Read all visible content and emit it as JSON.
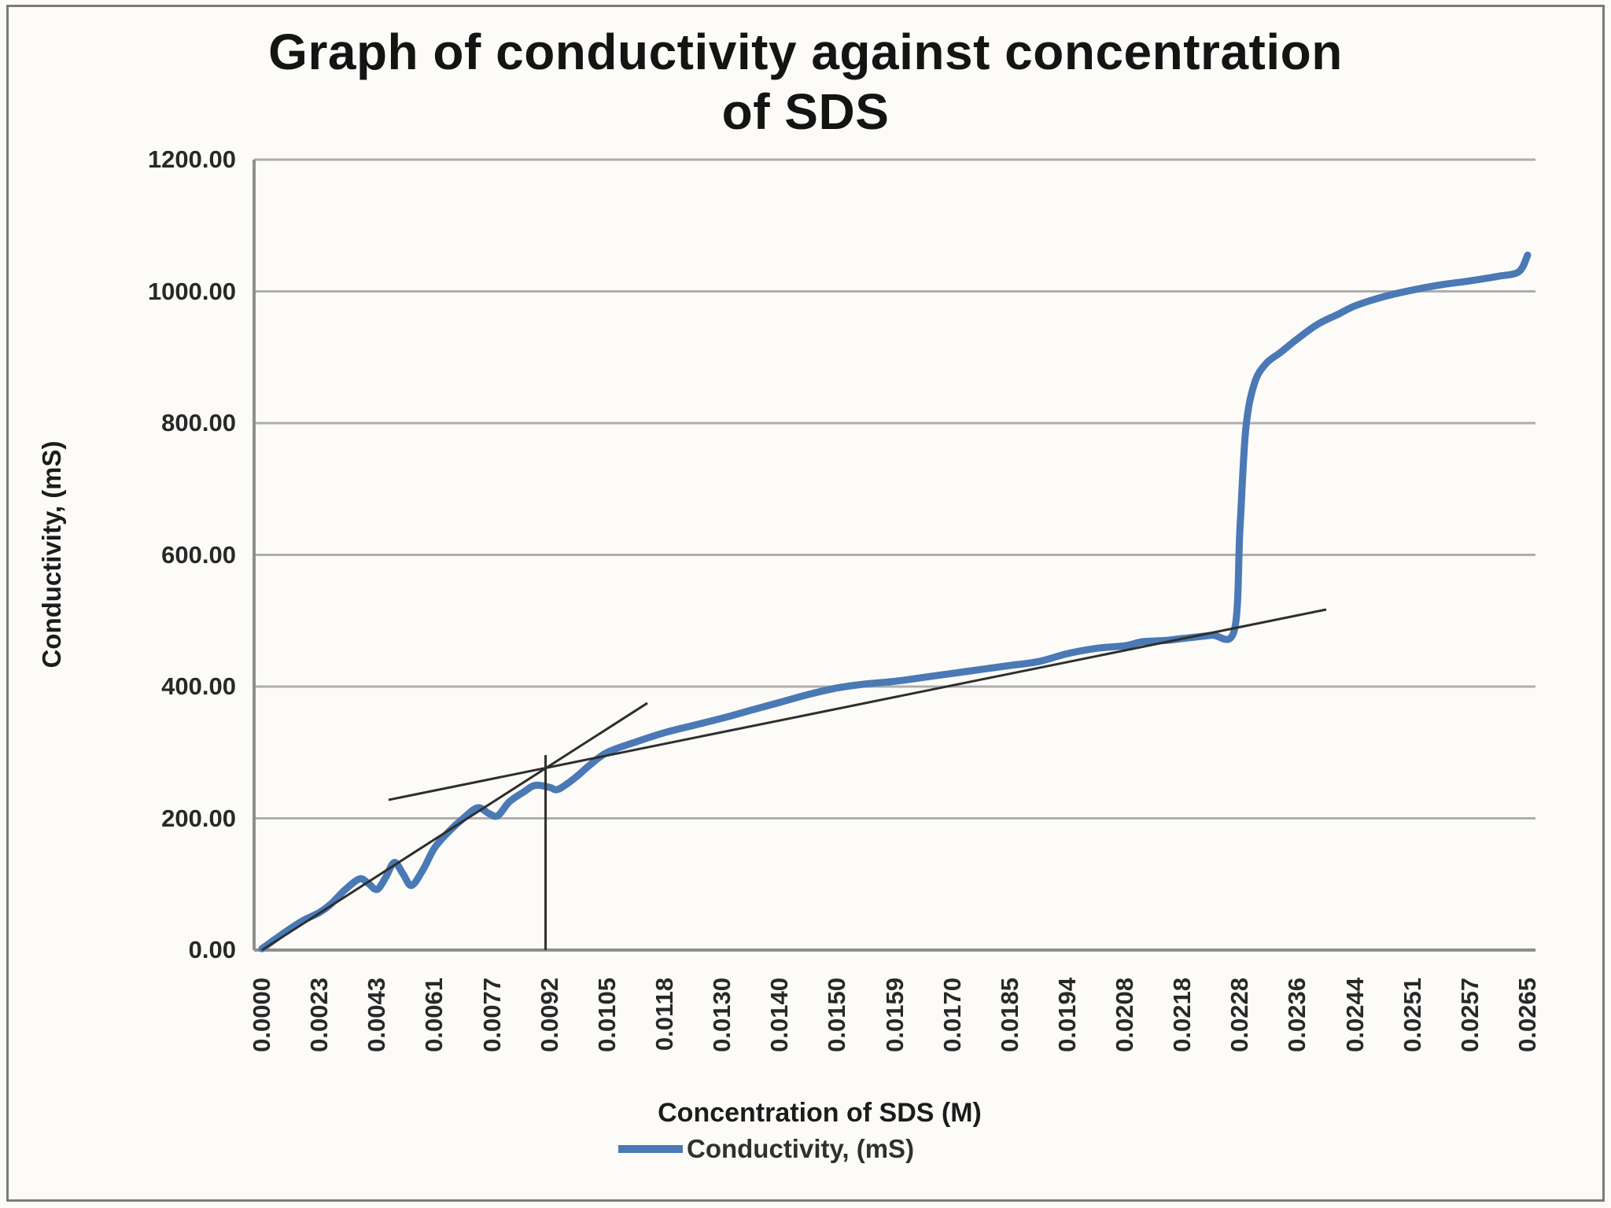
{
  "title": {
    "line1": "Graph of conductivity against concentration",
    "line2": "of SDS"
  },
  "y_axis": {
    "title": "Conductivity, (mS)",
    "tick_labels": [
      "0.00",
      "200.00",
      "400.00",
      "600.00",
      "800.00",
      "1000.00",
      "1200.00"
    ],
    "min": 0,
    "max": 1200,
    "step": 200
  },
  "x_axis": {
    "title": "Concentration of SDS (M)"
  },
  "legend": {
    "label": "Conductivity, (mS)",
    "swatch_color": "#4A79B5"
  },
  "colors": {
    "series_blue": "#4A79B5",
    "annotation_line": "#2e2e2e",
    "gridline": "#aeaeae",
    "axis_line": "#8f8f8f",
    "tick_text": "#282828",
    "background": "#fcfbf8",
    "border": "#7b7b7b"
  },
  "chart_data": {
    "type": "line",
    "title": "Graph of conductivity against concentration of SDS",
    "xlabel": "Concentration of SDS (M)",
    "ylabel": "Conductivity, (mS)",
    "ylim": [
      0,
      1200
    ],
    "grid": "horizontal-only",
    "legend_position": "bottom-center",
    "categories": [
      "0.0000",
      "0.0023",
      "0.0043",
      "0.0061",
      "0.0077",
      "0.0092",
      "0.0105",
      "0.0118",
      "0.0130",
      "0.0140",
      "0.0150",
      "0.0159",
      "0.0170",
      "0.0185",
      "0.0194",
      "0.0208",
      "0.0218",
      "0.0228",
      "0.0236",
      "0.0244",
      "0.0251",
      "0.0257",
      "0.0265"
    ],
    "series": [
      {
        "name": "Conductivity, (mS)",
        "color": "#4A79B5",
        "values": [
          2,
          57,
          92,
          155,
          204,
          246,
          300,
          330,
          352,
          376,
          398,
          408,
          420,
          432,
          450,
          462,
          473,
          483,
          928,
          978,
          1002,
          1016,
          1055
        ]
      }
    ],
    "smoothed_curve_samples_index_value": [
      [
        0,
        2
      ],
      [
        0.35,
        24
      ],
      [
        0.7,
        44
      ],
      [
        1,
        57
      ],
      [
        1.2,
        70
      ],
      [
        1.45,
        92
      ],
      [
        1.7,
        108
      ],
      [
        1.85,
        101
      ],
      [
        2,
        92
      ],
      [
        2.15,
        110
      ],
      [
        2.3,
        133
      ],
      [
        2.45,
        116
      ],
      [
        2.6,
        98
      ],
      [
        2.8,
        122
      ],
      [
        3,
        155
      ],
      [
        3.25,
        180
      ],
      [
        3.5,
        200
      ],
      [
        3.75,
        216
      ],
      [
        3.95,
        207
      ],
      [
        4.1,
        204
      ],
      [
        4.3,
        225
      ],
      [
        4.55,
        240
      ],
      [
        4.75,
        250
      ],
      [
        5,
        247
      ],
      [
        5.15,
        244
      ],
      [
        5.45,
        262
      ],
      [
        5.7,
        281
      ],
      [
        6,
        300
      ],
      [
        6.5,
        316
      ],
      [
        7,
        330
      ],
      [
        7.5,
        341
      ],
      [
        8,
        352
      ],
      [
        8.5,
        364
      ],
      [
        9,
        376
      ],
      [
        9.5,
        388
      ],
      [
        10,
        398
      ],
      [
        10.5,
        404
      ],
      [
        11,
        408
      ],
      [
        11.5,
        414
      ],
      [
        12,
        420
      ],
      [
        12.5,
        426
      ],
      [
        13,
        432
      ],
      [
        13.5,
        438
      ],
      [
        14,
        450
      ],
      [
        14.5,
        458
      ],
      [
        15,
        462
      ],
      [
        15.3,
        468
      ],
      [
        15.7,
        470
      ],
      [
        16,
        473
      ],
      [
        16.5,
        478
      ],
      [
        16.9,
        485
      ],
      [
        17.0,
        640
      ],
      [
        17.1,
        790
      ],
      [
        17.25,
        860
      ],
      [
        17.45,
        890
      ],
      [
        17.7,
        907
      ],
      [
        18,
        928
      ],
      [
        18.35,
        950
      ],
      [
        18.7,
        965
      ],
      [
        19,
        978
      ],
      [
        19.5,
        992
      ],
      [
        20,
        1002
      ],
      [
        20.5,
        1010
      ],
      [
        21,
        1016
      ],
      [
        21.5,
        1023
      ],
      [
        21.85,
        1030
      ],
      [
        22,
        1055
      ]
    ],
    "annotations": {
      "trendline_steep_index_value": [
        [
          0,
          0
        ],
        [
          6.7,
          375
        ]
      ],
      "trendline_shallow_index_value": [
        [
          2.2,
          228
        ],
        [
          18.5,
          517
        ]
      ],
      "vertical_line": {
        "index": 4.93,
        "value_top": 296
      }
    }
  }
}
